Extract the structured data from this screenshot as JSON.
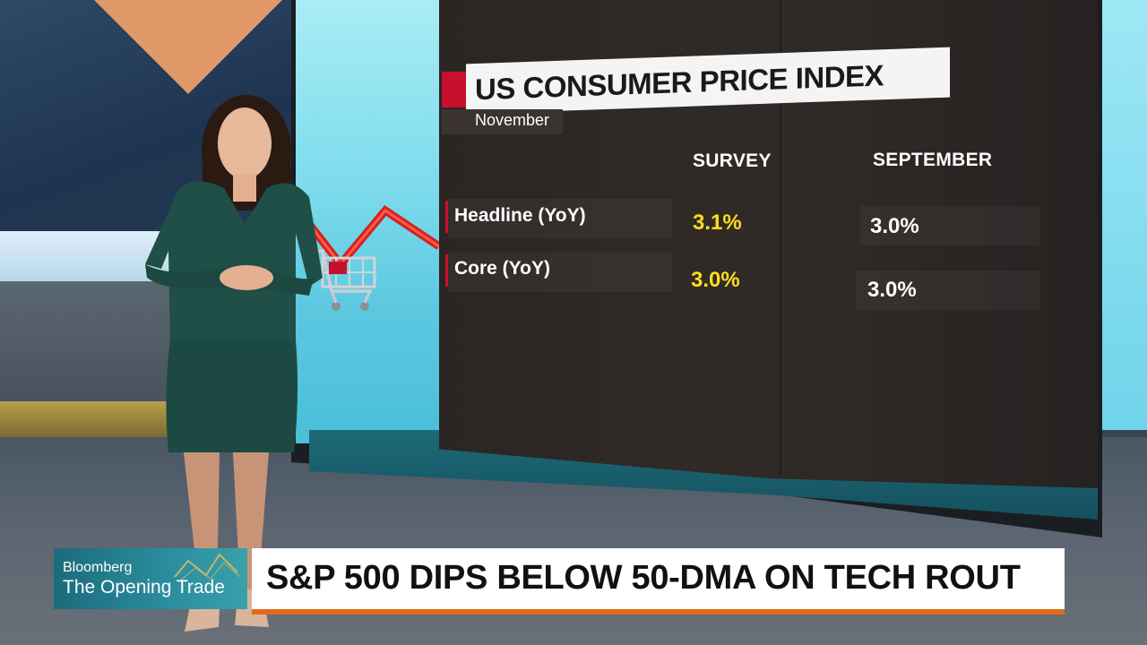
{
  "graphic": {
    "title": "US CONSUMER PRICE INDEX",
    "subtitle": "November",
    "columns": [
      "SURVEY",
      "SEPTEMBER"
    ],
    "rows": [
      {
        "label": "Headline (YoY)",
        "survey": "3.1%",
        "september": "3.0%"
      },
      {
        "label": "Core (YoY)",
        "survey": "3.0%",
        "september": "3.0%"
      }
    ]
  },
  "lower_third": {
    "brand": "Bloomberg",
    "show": "The Opening Trade",
    "headline": "S&P 500 DIPS BELOW 50-DMA ON TECH ROUT"
  },
  "colors": {
    "accent_red": "#c8102e",
    "survey_yellow": "#ffde1a",
    "headline_underline": "#e36a1a",
    "brand_teal": "#1b6b7c"
  },
  "icons": [
    "shopping-cart-icon",
    "trend-line-icon",
    "bloomberg-logo-icon"
  ]
}
